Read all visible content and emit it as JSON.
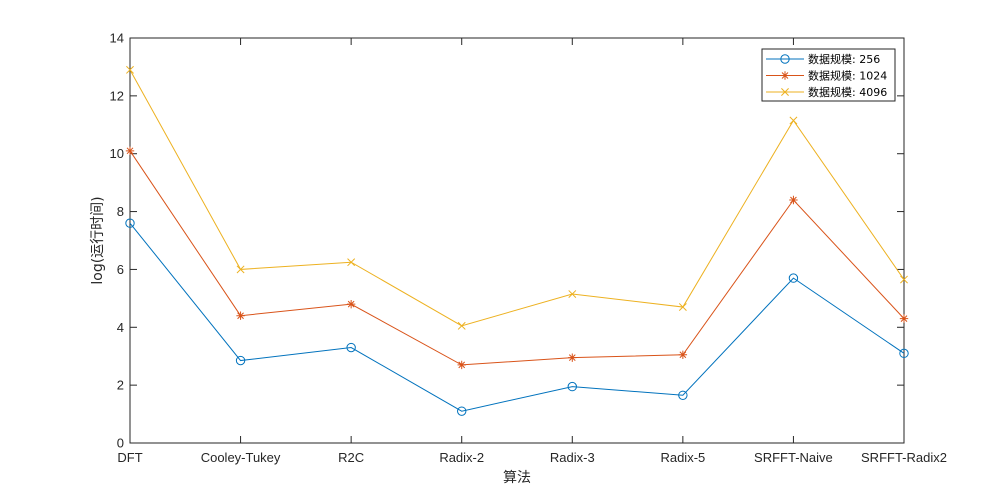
{
  "chart_data": {
    "type": "line",
    "categories": [
      "DFT",
      "Cooley-Tukey",
      "R2C",
      "Radix-2",
      "Radix-3",
      "Radix-5",
      "SRFFT-Naive",
      "SRFFT-Radix2"
    ],
    "xlabel": "算法",
    "ylabel": "log(运行时间)",
    "ylim": [
      0,
      14
    ],
    "yticks": [
      0,
      2,
      4,
      6,
      8,
      10,
      12,
      14
    ],
    "grid": false,
    "legend_position": "top-right",
    "series": [
      {
        "name": "数据规模: 256",
        "color": "#0072BD",
        "marker": "circle",
        "values": [
          7.6,
          2.85,
          3.3,
          1.1,
          1.95,
          1.65,
          5.7,
          3.1
        ]
      },
      {
        "name": "数据规模: 1024",
        "color": "#D95319",
        "marker": "star",
        "values": [
          10.1,
          4.4,
          4.8,
          2.7,
          2.95,
          3.05,
          8.4,
          4.3
        ]
      },
      {
        "name": "数据规模: 4096",
        "color": "#EDB120",
        "marker": "x",
        "values": [
          12.9,
          6.0,
          6.25,
          4.05,
          5.15,
          4.7,
          11.15,
          5.65
        ]
      }
    ]
  }
}
